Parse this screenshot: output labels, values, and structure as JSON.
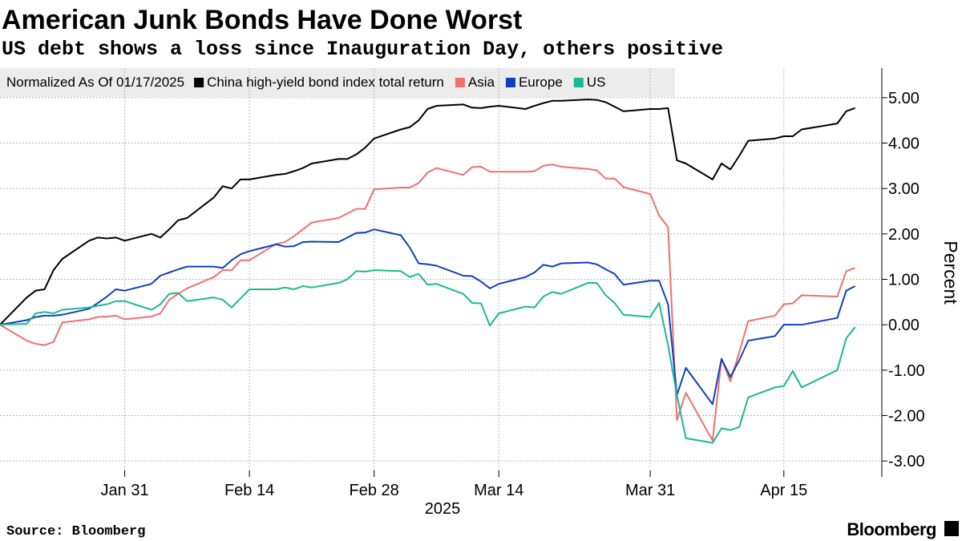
{
  "chart_data": {
    "type": "line",
    "title": "American Junk Bonds Have Done Worst",
    "subtitle": "US debt shows a loss since Inauguration Day, others positive",
    "legend_title": "Normalized As Of 01/17/2025",
    "xlabel": "2025",
    "ylabel": "Percent",
    "source": "Source: Bloomberg",
    "logo": "Bloomberg",
    "grid": true,
    "legend": "top-left",
    "x": [
      "2025-01-17",
      "2025-01-20",
      "2025-01-21",
      "2025-01-22",
      "2025-01-23",
      "2025-01-24",
      "2025-01-27",
      "2025-01-28",
      "2025-01-29",
      "2025-01-30",
      "2025-01-31",
      "2025-02-03",
      "2025-02-04",
      "2025-02-05",
      "2025-02-06",
      "2025-02-07",
      "2025-02-10",
      "2025-02-11",
      "2025-02-12",
      "2025-02-13",
      "2025-02-14",
      "2025-02-17",
      "2025-02-18",
      "2025-02-19",
      "2025-02-20",
      "2025-02-21",
      "2025-02-24",
      "2025-02-25",
      "2025-02-26",
      "2025-02-27",
      "2025-02-28",
      "2025-03-03",
      "2025-03-04",
      "2025-03-05",
      "2025-03-06",
      "2025-03-07",
      "2025-03-10",
      "2025-03-11",
      "2025-03-12",
      "2025-03-13",
      "2025-03-14",
      "2025-03-17",
      "2025-03-18",
      "2025-03-19",
      "2025-03-20",
      "2025-03-21",
      "2025-03-24",
      "2025-03-25",
      "2025-03-26",
      "2025-03-27",
      "2025-03-28",
      "2025-03-31",
      "2025-04-01",
      "2025-04-02",
      "2025-04-03",
      "2025-04-04",
      "2025-04-07",
      "2025-04-08",
      "2025-04-09",
      "2025-04-10",
      "2025-04-11",
      "2025-04-14",
      "2025-04-15",
      "2025-04-16",
      "2025-04-17",
      "2025-04-21",
      "2025-04-22",
      "2025-04-23"
    ],
    "xlim": [
      "2025-01-17",
      "2025-04-26"
    ],
    "xticks": [
      {
        "value": "2025-01-31",
        "label": "Jan 31"
      },
      {
        "value": "2025-02-14",
        "label": "Feb 14"
      },
      {
        "value": "2025-02-28",
        "label": "Feb 28"
      },
      {
        "value": "2025-03-14",
        "label": "Mar 14"
      },
      {
        "value": "2025-03-31",
        "label": "Mar 31"
      },
      {
        "value": "2025-04-15",
        "label": "Apr 15"
      }
    ],
    "ylim": [
      -3.35,
      5.65
    ],
    "yticks": [
      {
        "value": -3,
        "label": "-3.00"
      },
      {
        "value": -2,
        "label": "-2.00"
      },
      {
        "value": -1,
        "label": "-1.00"
      },
      {
        "value": 0,
        "label": "0.00"
      },
      {
        "value": 1,
        "label": "1.00"
      },
      {
        "value": 2,
        "label": "2.00"
      },
      {
        "value": 3,
        "label": "3.00"
      },
      {
        "value": 4,
        "label": "4.00"
      },
      {
        "value": 5,
        "label": "5.00"
      }
    ],
    "series": [
      {
        "name": "China high-yield bond index total return",
        "color": "#000000",
        "values": [
          0,
          0.6,
          0.75,
          0.78,
          1.2,
          1.45,
          1.85,
          1.92,
          1.9,
          1.92,
          1.85,
          2.0,
          1.92,
          2.1,
          2.3,
          2.35,
          2.8,
          3.05,
          3.0,
          3.2,
          3.2,
          3.3,
          3.32,
          3.38,
          3.45,
          3.55,
          3.65,
          3.65,
          3.75,
          3.9,
          4.1,
          4.3,
          4.35,
          4.5,
          4.75,
          4.82,
          4.85,
          4.78,
          4.77,
          4.8,
          4.82,
          4.75,
          4.82,
          4.88,
          4.93,
          4.93,
          4.96,
          4.95,
          4.9,
          4.8,
          4.7,
          4.75,
          4.75,
          4.77,
          3.62,
          3.55,
          3.2,
          3.55,
          3.42,
          3.72,
          4.05,
          4.1,
          4.15,
          4.15,
          4.3,
          4.43,
          4.7,
          4.77
        ]
      },
      {
        "name": "Asia",
        "color": "#f07070",
        "values": [
          0,
          -0.35,
          -0.42,
          -0.45,
          -0.38,
          0.05,
          0.12,
          0.17,
          0.18,
          0.2,
          0.12,
          0.18,
          0.25,
          0.55,
          0.68,
          0.8,
          1.05,
          1.2,
          1.2,
          1.42,
          1.42,
          1.78,
          1.82,
          1.95,
          2.1,
          2.25,
          2.35,
          2.45,
          2.55,
          2.55,
          2.98,
          3.02,
          3.02,
          3.12,
          3.35,
          3.45,
          3.3,
          3.47,
          3.48,
          3.37,
          3.37,
          3.37,
          3.38,
          3.5,
          3.53,
          3.48,
          3.43,
          3.4,
          3.22,
          3.22,
          3.03,
          2.88,
          2.4,
          2.15,
          -2.1,
          -1.5,
          -2.55,
          -0.75,
          -1.25,
          -0.6,
          0.08,
          0.2,
          0.45,
          0.47,
          0.65,
          0.62,
          1.18,
          1.25
        ]
      },
      {
        "name": "Europe",
        "color": "#1040c0",
        "values": [
          0,
          0.1,
          0.17,
          0.2,
          0.2,
          0.22,
          0.35,
          0.48,
          0.62,
          0.78,
          0.75,
          0.9,
          1.08,
          1.15,
          1.22,
          1.28,
          1.28,
          1.25,
          1.42,
          1.55,
          1.62,
          1.77,
          1.72,
          1.73,
          1.82,
          1.83,
          1.82,
          1.92,
          2.02,
          2.03,
          2.1,
          1.97,
          1.7,
          1.35,
          1.33,
          1.3,
          1.08,
          1.07,
          0.95,
          0.8,
          0.9,
          1.05,
          1.15,
          1.32,
          1.28,
          1.35,
          1.37,
          1.33,
          1.22,
          1.12,
          0.88,
          0.97,
          0.97,
          0.45,
          -1.55,
          -0.95,
          -1.75,
          -0.75,
          -1.15,
          -0.78,
          -0.35,
          -0.25,
          0.0,
          0.0,
          0.0,
          0.15,
          0.75,
          0.85
        ]
      },
      {
        "name": "US",
        "color": "#1ab894",
        "values": [
          0,
          0.02,
          0.25,
          0.28,
          0.25,
          0.33,
          0.38,
          0.42,
          0.45,
          0.52,
          0.52,
          0.33,
          0.45,
          0.68,
          0.7,
          0.52,
          0.6,
          0.55,
          0.38,
          0.58,
          0.78,
          0.78,
          0.82,
          0.78,
          0.85,
          0.82,
          0.92,
          1.0,
          1.18,
          1.17,
          1.2,
          1.18,
          1.05,
          1.12,
          0.88,
          0.9,
          0.68,
          0.48,
          0.47,
          -0.02,
          0.25,
          0.4,
          0.38,
          0.62,
          0.72,
          0.68,
          0.92,
          0.92,
          0.65,
          0.48,
          0.22,
          0.17,
          0.48,
          -0.45,
          -1.55,
          -2.5,
          -2.6,
          -2.28,
          -2.32,
          -2.25,
          -1.6,
          -1.38,
          -1.35,
          -1.02,
          -1.38,
          -1.0,
          -0.3,
          -0.05
        ]
      }
    ]
  }
}
